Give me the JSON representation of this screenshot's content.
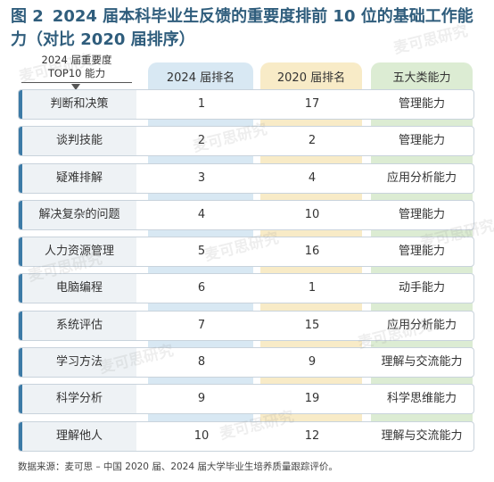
{
  "title": {
    "figure": "图 2",
    "text": "2024 届本科毕业生反馈的重要度排前 10 位的基础工作能力（对比 2020 届排序）"
  },
  "header": {
    "row_label_line1": "2024 届重要度",
    "row_label_line2": "TOP10 能力",
    "col_2024": "2024 届排名",
    "col_2020": "2020 届排名",
    "col_category": "五大类能力"
  },
  "rows": [
    {
      "skill": "判断和决策",
      "rank_2024": "1",
      "rank_2020": "17",
      "category": "管理能力"
    },
    {
      "skill": "谈判技能",
      "rank_2024": "2",
      "rank_2020": "2",
      "category": "管理能力"
    },
    {
      "skill": "疑难排解",
      "rank_2024": "3",
      "rank_2020": "4",
      "category": "应用分析能力"
    },
    {
      "skill": "解决复杂的问题",
      "rank_2024": "4",
      "rank_2020": "10",
      "category": "管理能力"
    },
    {
      "skill": "人力资源管理",
      "rank_2024": "5",
      "rank_2020": "16",
      "category": "管理能力"
    },
    {
      "skill": "电脑编程",
      "rank_2024": "6",
      "rank_2020": "1",
      "category": "动手能力"
    },
    {
      "skill": "系统评估",
      "rank_2024": "7",
      "rank_2020": "15",
      "category": "应用分析能力"
    },
    {
      "skill": "学习方法",
      "rank_2024": "8",
      "rank_2020": "9",
      "category": "理解与交流能力"
    },
    {
      "skill": "科学分析",
      "rank_2024": "9",
      "rank_2020": "19",
      "category": "科学思维能力"
    },
    {
      "skill": "理解他人",
      "rank_2024": "10",
      "rank_2020": "12",
      "category": "理解与交流能力"
    }
  ],
  "source": "数据来源：麦可思 – 中国 2020 届、2024 届大学毕业生培养质量跟踪评价。",
  "watermark": "麦可思研究"
}
